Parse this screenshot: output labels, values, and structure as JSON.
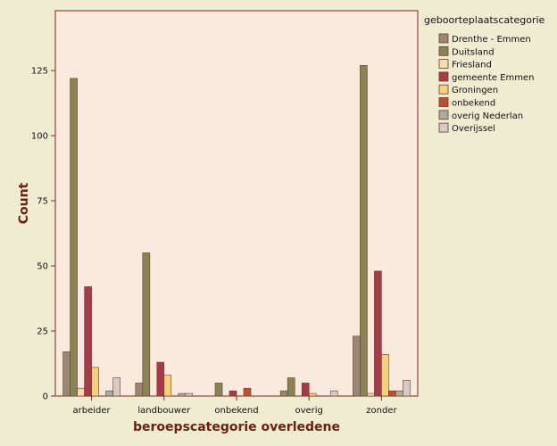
{
  "chart_data": {
    "type": "bar",
    "xlabel": "beroepscategorie overledene",
    "ylabel": "Count",
    "ylim": [
      0,
      148
    ],
    "yticks": [
      0,
      25,
      50,
      75,
      100,
      125
    ],
    "grid": false,
    "legend_title": "geboorteplaatscategorie",
    "legend_position": "right",
    "plot_background": "#f8ebdd",
    "outer_background": "#f0ecd2",
    "axis_color": "#7a2a1a",
    "categories": [
      "arbeider",
      "landbouwer",
      "onbekend",
      "overig",
      "zonder"
    ],
    "series": [
      {
        "name": "Drenthe - Emmen",
        "color": "#9a8675",
        "values": [
          17,
          5,
          0,
          2,
          23
        ]
      },
      {
        "name": "Duitsland",
        "color": "#8a8455",
        "values": [
          122,
          55,
          5,
          7,
          127
        ]
      },
      {
        "name": "Friesland",
        "color": "#f4dcae",
        "values": [
          3,
          0,
          0,
          0,
          1
        ]
      },
      {
        "name": "gemeente Emmen",
        "color": "#a83a4a",
        "values": [
          42,
          13,
          2,
          5,
          48
        ]
      },
      {
        "name": "Groningen",
        "color": "#f3d27a",
        "values": [
          11,
          8,
          0,
          1,
          16
        ]
      },
      {
        "name": "onbekend",
        "color": "#c0502a",
        "values": [
          0,
          0,
          3,
          0,
          2
        ]
      },
      {
        "name": "overig Nederlan",
        "color": "#a8ad98",
        "values": [
          2,
          1,
          0,
          0,
          2
        ]
      },
      {
        "name": "Overijssel",
        "color": "#d8c9c2",
        "values": [
          7,
          1,
          0,
          2,
          6
        ]
      }
    ]
  }
}
